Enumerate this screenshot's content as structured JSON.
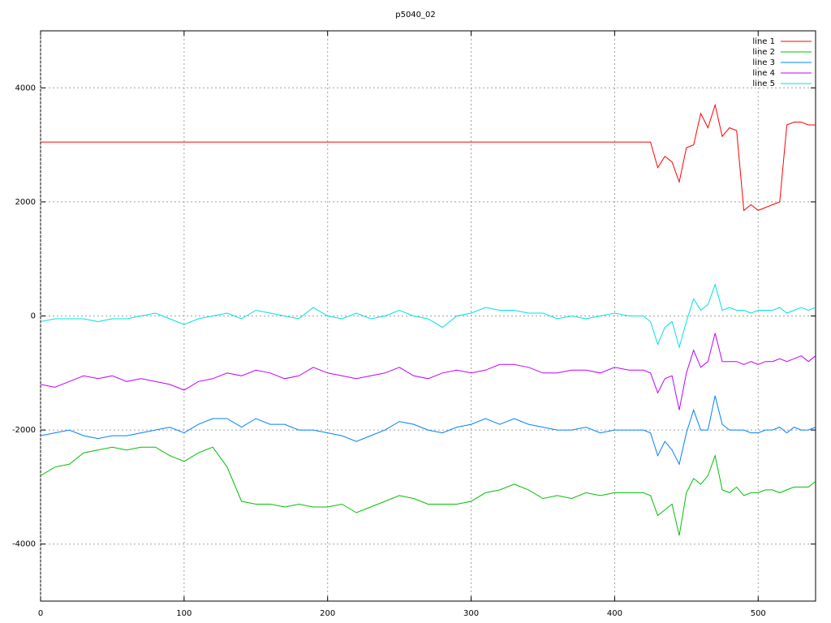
{
  "chart_data": {
    "type": "line",
    "title": "p5040_02",
    "x": [
      0,
      10,
      20,
      30,
      40,
      50,
      60,
      70,
      80,
      90,
      100,
      110,
      120,
      130,
      140,
      150,
      160,
      170,
      180,
      190,
      200,
      210,
      220,
      230,
      240,
      250,
      260,
      270,
      280,
      290,
      300,
      310,
      320,
      330,
      340,
      350,
      360,
      370,
      380,
      390,
      400,
      410,
      420,
      425,
      430,
      435,
      440,
      445,
      450,
      455,
      460,
      465,
      470,
      475,
      480,
      485,
      490,
      495,
      500,
      505,
      510,
      515,
      520,
      525,
      530,
      535,
      540
    ],
    "series": [
      {
        "name": "line 1",
        "color": "#ff0000",
        "values": [
          3050,
          3050,
          3050,
          3050,
          3050,
          3050,
          3050,
          3050,
          3050,
          3050,
          3050,
          3050,
          3050,
          3050,
          3050,
          3050,
          3050,
          3050,
          3050,
          3050,
          3050,
          3050,
          3050,
          3050,
          3050,
          3050,
          3050,
          3050,
          3050,
          3050,
          3050,
          3050,
          3050,
          3050,
          3050,
          3050,
          3050,
          3050,
          3050,
          3050,
          3050,
          3050,
          3050,
          3050,
          2600,
          2800,
          2700,
          2350,
          2950,
          3000,
          3550,
          3300,
          3700,
          3150,
          3300,
          3250,
          1850,
          1950,
          1850,
          1900,
          1950,
          2000,
          3350,
          3400,
          3400,
          3350,
          3350
        ]
      },
      {
        "name": "line 2",
        "color": "#00c000",
        "values": [
          -2800,
          -2650,
          -2600,
          -2400,
          -2350,
          -2300,
          -2350,
          -2300,
          -2300,
          -2450,
          -2550,
          -2400,
          -2300,
          -2650,
          -3250,
          -3300,
          -3300,
          -3350,
          -3300,
          -3350,
          -3350,
          -3300,
          -3450,
          -3350,
          -3250,
          -3150,
          -3200,
          -3300,
          -3300,
          -3300,
          -3250,
          -3100,
          -3050,
          -2950,
          -3050,
          -3200,
          -3150,
          -3200,
          -3100,
          -3150,
          -3100,
          -3100,
          -3100,
          -3150,
          -3500,
          -3400,
          -3300,
          -3850,
          -3100,
          -2850,
          -2950,
          -2800,
          -2450,
          -3050,
          -3100,
          -3000,
          -3150,
          -3100,
          -3100,
          -3050,
          -3050,
          -3100,
          -3050,
          -3000,
          -3000,
          -3000,
          -2900
        ]
      },
      {
        "name": "line 3",
        "color": "#0080ff",
        "values": [
          -2100,
          -2050,
          -2000,
          -2100,
          -2150,
          -2100,
          -2100,
          -2050,
          -2000,
          -1950,
          -2050,
          -1900,
          -1800,
          -1800,
          -1950,
          -1800,
          -1900,
          -1900,
          -2000,
          -2000,
          -2050,
          -2100,
          -2200,
          -2100,
          -2000,
          -1850,
          -1900,
          -2000,
          -2050,
          -1950,
          -1900,
          -1800,
          -1900,
          -1800,
          -1900,
          -1950,
          -2000,
          -2000,
          -1950,
          -2050,
          -2000,
          -2000,
          -2000,
          -2050,
          -2450,
          -2200,
          -2350,
          -2600,
          -2050,
          -1650,
          -2000,
          -2000,
          -1400,
          -1900,
          -2000,
          -2000,
          -2000,
          -2050,
          -2050,
          -2000,
          -2000,
          -1950,
          -2050,
          -1950,
          -2000,
          -2000,
          -1950
        ]
      },
      {
        "name": "line 4",
        "color": "#c000ff",
        "values": [
          -1200,
          -1250,
          -1150,
          -1050,
          -1100,
          -1050,
          -1150,
          -1100,
          -1150,
          -1200,
          -1300,
          -1150,
          -1100,
          -1000,
          -1050,
          -950,
          -1000,
          -1100,
          -1050,
          -900,
          -1000,
          -1050,
          -1100,
          -1050,
          -1000,
          -900,
          -1050,
          -1100,
          -1000,
          -950,
          -1000,
          -950,
          -850,
          -850,
          -900,
          -1000,
          -1000,
          -950,
          -950,
          -1000,
          -900,
          -950,
          -950,
          -1000,
          -1350,
          -1100,
          -1050,
          -1650,
          -1000,
          -600,
          -900,
          -800,
          -300,
          -800,
          -800,
          -800,
          -850,
          -800,
          -850,
          -800,
          -800,
          -750,
          -800,
          -750,
          -700,
          -800,
          -700
        ]
      },
      {
        "name": "line 5",
        "color": "#00e0e0",
        "values": [
          -100,
          -50,
          -50,
          -50,
          -100,
          -50,
          -50,
          0,
          50,
          -50,
          -150,
          -50,
          0,
          50,
          -50,
          100,
          50,
          0,
          -50,
          150,
          0,
          -50,
          50,
          -50,
          0,
          100,
          0,
          -50,
          -200,
          0,
          50,
          150,
          100,
          100,
          50,
          50,
          -50,
          0,
          -50,
          0,
          50,
          0,
          0,
          -100,
          -500,
          -200,
          -100,
          -550,
          -100,
          300,
          100,
          200,
          550,
          100,
          150,
          100,
          100,
          50,
          100,
          100,
          100,
          150,
          50,
          100,
          150,
          100,
          150
        ]
      }
    ],
    "xlim": [
      0,
      540
    ],
    "ylim": [
      -5000,
      5000
    ],
    "xticks": [
      0,
      100,
      200,
      300,
      400,
      500
    ],
    "yticks": [
      -4000,
      -2000,
      0,
      2000,
      4000
    ],
    "grid": true,
    "legend": "top-right"
  }
}
